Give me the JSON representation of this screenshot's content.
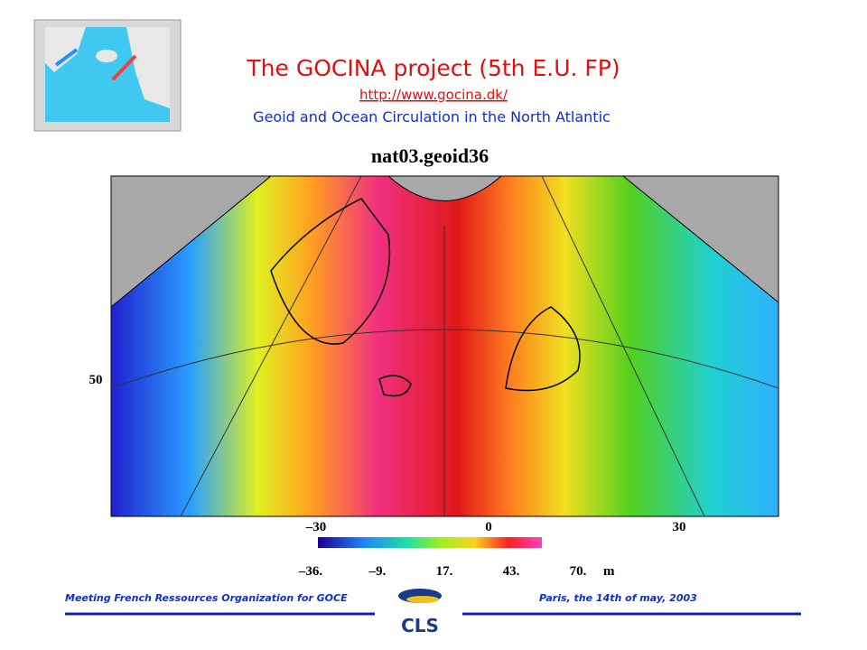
{
  "header": {
    "title": "The GOCINA project (5th E.U. FP)",
    "link": "http://www.gocina.dk/",
    "subtitle": "Geoid and Ocean Circulation in the North Atlantic"
  },
  "figure": {
    "title": "nat03.geoid36",
    "lat_labels": [
      "50"
    ],
    "lon_labels": [
      "–30",
      "0",
      "30"
    ],
    "colorbar": {
      "ticks": [
        "–36.",
        "–9.",
        "17.",
        "43.",
        "70."
      ],
      "unit": "m"
    }
  },
  "footer": {
    "left": "Meeting French Ressources Organization for GOCE",
    "right": "Paris, the 14th of may, 2003",
    "logo": "CLS"
  }
}
